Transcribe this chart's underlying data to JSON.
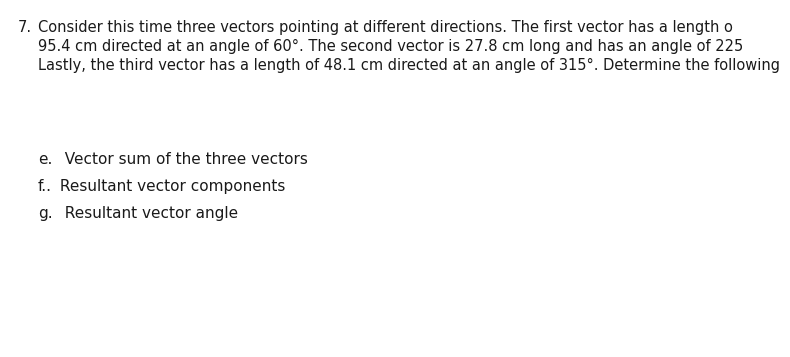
{
  "number": "7.",
  "paragraph_line1": "Consider this time three vectors pointing at different directions. The first vector has a length o",
  "paragraph_line2": "95.4 cm directed at an angle of 60°. The second vector is 27.8 cm long and has an angle of 225",
  "paragraph_line3": "Lastly, the third vector has a length of 48.1 cm directed at an angle of 315°. Determine the following",
  "item_e_label": "e.",
  "item_e_text": "  Vector sum of the three vectors",
  "item_f_label": "f..",
  "item_f_text": " Resultant vector components",
  "item_g_label": "g.",
  "item_g_text": "  Resultant vector angle",
  "bg_color": "#ffffff",
  "text_color": "#1a1a1a",
  "font_size_para": 10.5,
  "font_size_items": 11.0
}
